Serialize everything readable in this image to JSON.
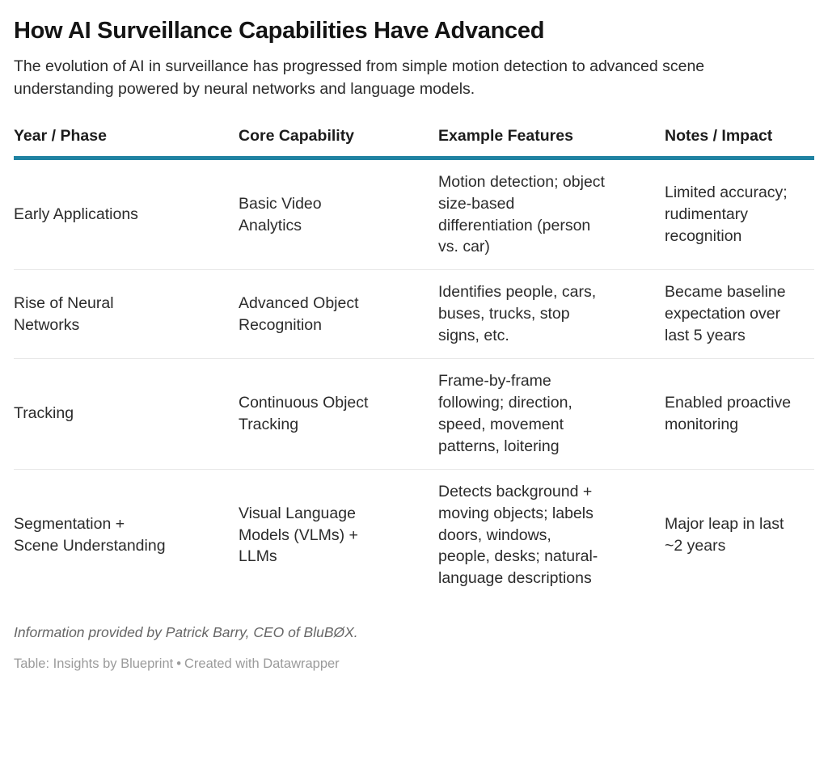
{
  "header": {
    "title": "How AI Surveillance Capabilities Have Advanced",
    "subtitle": "The evolution of AI in surveillance has progressed from simple motion detection to advanced scene understanding powered by neural networks and language models."
  },
  "chart_data": {
    "type": "table",
    "title": "How AI Surveillance Capabilities Have Advanced",
    "columns": [
      "Year / Phase",
      "Core Capability",
      "Example Features",
      "Notes / Impact"
    ],
    "rows": [
      [
        "Early Applications",
        "Basic Video Analytics",
        "Motion detection; object size-based differentiation (person vs. car)",
        "Limited accuracy; rudimentary recognition"
      ],
      [
        "Rise of Neural Networks",
        "Advanced Object Recognition",
        "Identifies people, cars, buses, trucks, stop signs, etc.",
        "Became baseline expectation over last 5 years"
      ],
      [
        "Tracking",
        "Continuous Object Tracking",
        "Frame-by-frame following; direction, speed, movement patterns, loitering",
        "Enabled proactive monitoring"
      ],
      [
        "Segmentation + Scene Understanding",
        "Visual Language Models (VLMs) + LLMs",
        "Detects background + moving objects; labels doors, windows, people, desks; natural-language descriptions",
        "Major leap in last ~2 years"
      ]
    ]
  },
  "footer": {
    "note": "Information provided by Patrick Barry, CEO of BluBØX.",
    "attribution_prefix": "Table:",
    "attribution_source": "Insights by Blueprint",
    "attribution_separator": "•",
    "attribution_credit": "Created with Datawrapper"
  },
  "colors": {
    "accent": "#1f82a2",
    "separator": "#e8e8e8",
    "title_text": "#141414",
    "body_text": "#2b2b2b",
    "note_text": "#666666",
    "attribution_text": "#9b9b9b"
  }
}
